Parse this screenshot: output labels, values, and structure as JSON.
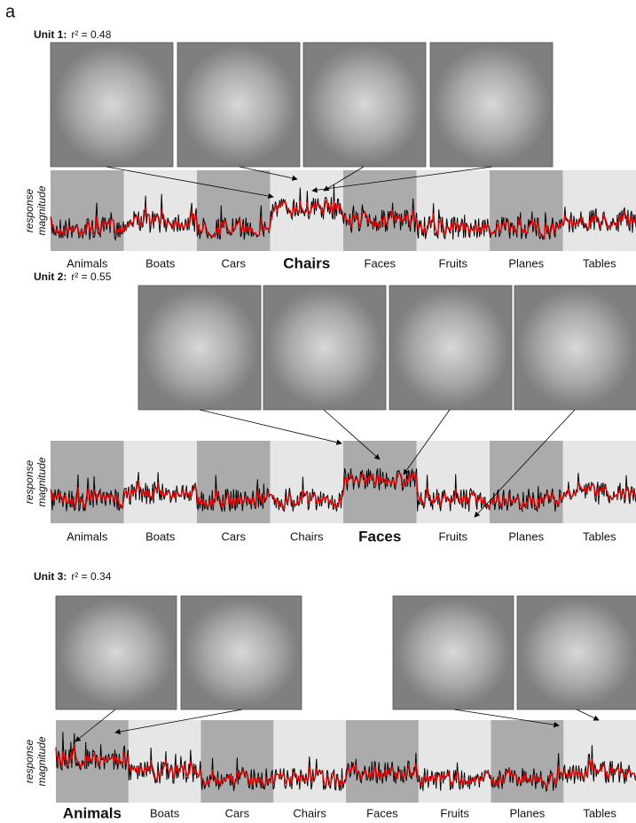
{
  "panel_label": "a",
  "units": [
    {
      "title": "Unit 1:",
      "stat": "r² = 0.48",
      "y_label_1": "response",
      "y_label_2": "magnitude",
      "categories": [
        "Animals",
        "Boats",
        "Cars",
        "Chairs",
        "Faces",
        "Fruits",
        "Planes",
        "Tables"
      ],
      "preferred": 3
    },
    {
      "title": "Unit 2:",
      "stat": "r² = 0.55",
      "y_label_1": "response",
      "y_label_2": "magnitude",
      "categories": [
        "Animals",
        "Boats",
        "Cars",
        "Chairs",
        "Faces",
        "Fruits",
        "Planes",
        "Tables"
      ],
      "preferred": 4
    },
    {
      "title": "Unit 3:",
      "stat": "r² = 0.34",
      "y_label_1": "response",
      "y_label_2": "magnitude",
      "categories": [
        "Animals",
        "Boats",
        "Cars",
        "Chairs",
        "Faces",
        "Fruits",
        "Planes",
        "Tables"
      ],
      "preferred": 0
    }
  ]
}
